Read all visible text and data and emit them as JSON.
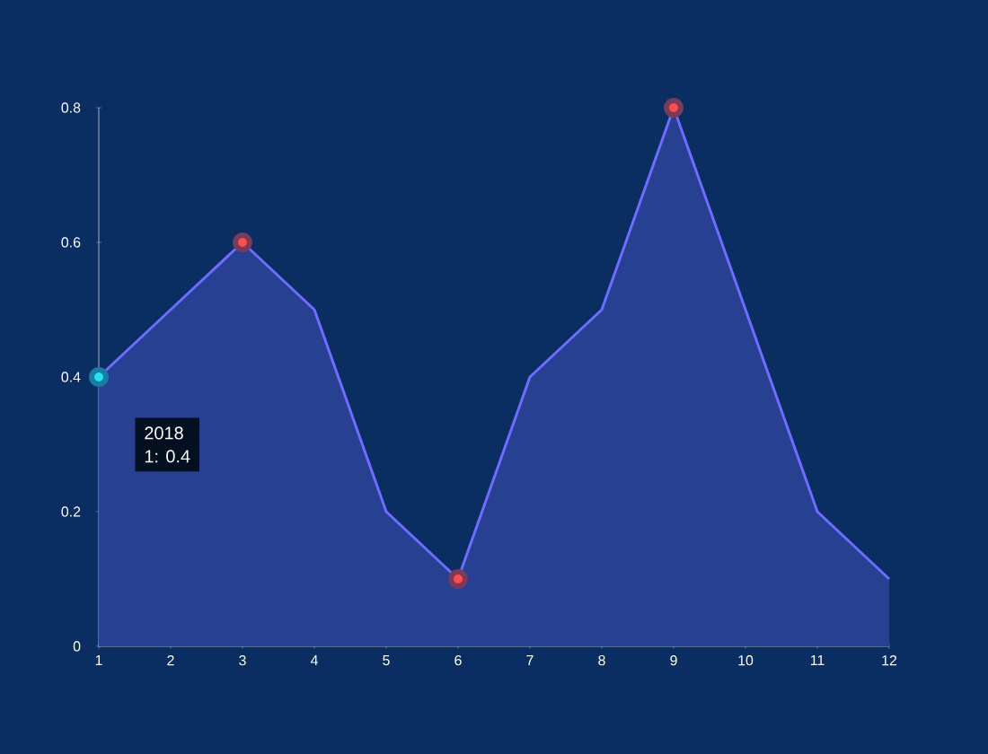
{
  "chart_data": {
    "type": "area",
    "categories": [
      "1",
      "2",
      "3",
      "4",
      "5",
      "6",
      "7",
      "8",
      "9",
      "10",
      "11",
      "12"
    ],
    "series": [
      {
        "color": "#6f6cff",
        "values": [
          0.4,
          0.5,
          0.6,
          0.5,
          0.2,
          0.1,
          0.4,
          0.5,
          0.8,
          0.5,
          0.2,
          0.1
        ]
      },
      {
        "type": "scatter",
        "color": "#ff4d4d",
        "x": [
          "3",
          "6",
          "9"
        ],
        "values": [
          0.6,
          0.1,
          0.8
        ]
      },
      {
        "type": "scatter",
        "color": "#27e0f0",
        "x": [
          "1"
        ],
        "values": [
          0.4
        ]
      }
    ],
    "ylim": [
      0,
      0.8
    ],
    "yticks": [
      0,
      0.2,
      0.4,
      0.6,
      0.8
    ],
    "annotations": [
      "2018",
      "1: 0.4"
    ]
  }
}
